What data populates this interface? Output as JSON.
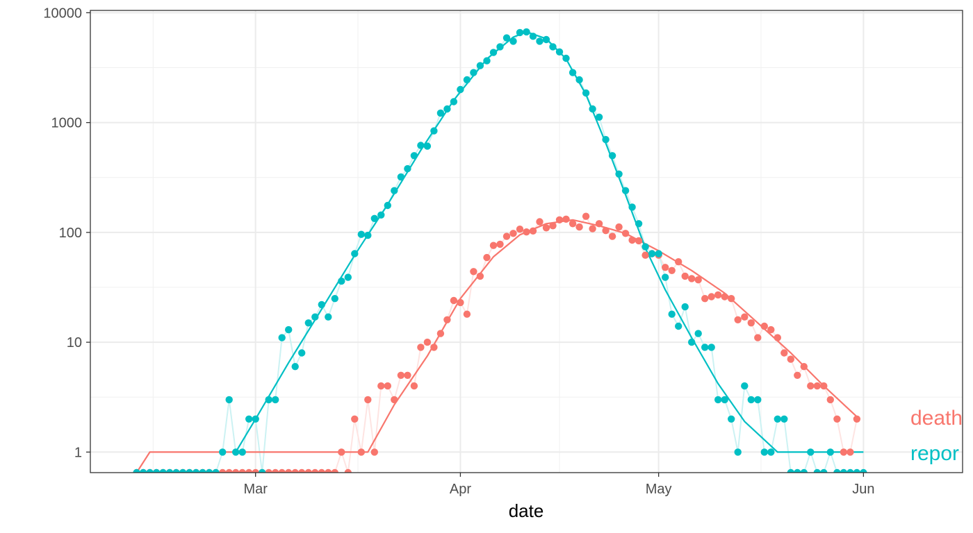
{
  "chart_data": {
    "type": "line",
    "title": "",
    "xlabel": "date",
    "ylabel": "",
    "y_scale": "log10",
    "y_ticks": [
      1,
      10,
      100,
      1000,
      10000
    ],
    "y_tick_labels": [
      "1",
      "10",
      "100",
      "1000",
      "10000"
    ],
    "ylim": [
      0.65,
      10500
    ],
    "xlim": [
      "2020-02-05",
      "2020-06-16"
    ],
    "x_ticks": [
      "2020-03-01",
      "2020-04-01",
      "2020-05-01",
      "2020-06-01"
    ],
    "x_tick_labels": [
      "Mar",
      "Apr",
      "May",
      "Jun"
    ],
    "grid": true,
    "legend": "direct labels at right edge",
    "series": [
      {
        "name": "death",
        "color": "#F8766D",
        "points": [
          [
            "2020-02-12",
            0
          ],
          [
            "2020-02-13",
            0
          ],
          [
            "2020-02-14",
            0
          ],
          [
            "2020-02-15",
            0
          ],
          [
            "2020-02-16",
            0
          ],
          [
            "2020-02-17",
            0
          ],
          [
            "2020-02-18",
            0
          ],
          [
            "2020-02-19",
            0
          ],
          [
            "2020-02-20",
            0
          ],
          [
            "2020-02-21",
            0
          ],
          [
            "2020-02-22",
            0
          ],
          [
            "2020-02-23",
            0
          ],
          [
            "2020-02-24",
            0
          ],
          [
            "2020-02-25",
            0
          ],
          [
            "2020-02-26",
            0
          ],
          [
            "2020-02-27",
            0
          ],
          [
            "2020-02-28",
            0
          ],
          [
            "2020-02-29",
            0
          ],
          [
            "2020-03-01",
            0
          ],
          [
            "2020-03-02",
            0
          ],
          [
            "2020-03-03",
            0
          ],
          [
            "2020-03-04",
            0
          ],
          [
            "2020-03-05",
            0
          ],
          [
            "2020-03-06",
            0
          ],
          [
            "2020-03-07",
            0
          ],
          [
            "2020-03-08",
            0
          ],
          [
            "2020-03-09",
            0
          ],
          [
            "2020-03-10",
            0
          ],
          [
            "2020-03-11",
            0
          ],
          [
            "2020-03-12",
            0
          ],
          [
            "2020-03-13",
            0
          ],
          [
            "2020-03-14",
            1
          ],
          [
            "2020-03-15",
            0
          ],
          [
            "2020-03-16",
            2
          ],
          [
            "2020-03-17",
            1
          ],
          [
            "2020-03-18",
            3
          ],
          [
            "2020-03-19",
            1
          ],
          [
            "2020-03-20",
            4
          ],
          [
            "2020-03-21",
            4
          ],
          [
            "2020-03-22",
            3
          ],
          [
            "2020-03-23",
            5
          ],
          [
            "2020-03-24",
            5
          ],
          [
            "2020-03-25",
            4
          ],
          [
            "2020-03-26",
            9
          ],
          [
            "2020-03-27",
            10
          ],
          [
            "2020-03-28",
            9
          ],
          [
            "2020-03-29",
            12
          ],
          [
            "2020-03-30",
            16
          ],
          [
            "2020-03-31",
            24
          ],
          [
            "2020-04-01",
            23
          ],
          [
            "2020-04-02",
            18
          ],
          [
            "2020-04-03",
            44
          ],
          [
            "2020-04-04",
            40
          ],
          [
            "2020-04-05",
            59
          ],
          [
            "2020-04-06",
            76
          ],
          [
            "2020-04-07",
            78
          ],
          [
            "2020-04-08",
            92
          ],
          [
            "2020-04-09",
            98
          ],
          [
            "2020-04-10",
            107
          ],
          [
            "2020-04-11",
            101
          ],
          [
            "2020-04-12",
            103
          ],
          [
            "2020-04-13",
            125
          ],
          [
            "2020-04-14",
            110
          ],
          [
            "2020-04-15",
            115
          ],
          [
            "2020-04-16",
            130
          ],
          [
            "2020-04-17",
            132
          ],
          [
            "2020-04-18",
            120
          ],
          [
            "2020-04-19",
            112
          ],
          [
            "2020-04-20",
            140
          ],
          [
            "2020-04-21",
            108
          ],
          [
            "2020-04-22",
            120
          ],
          [
            "2020-04-23",
            104
          ],
          [
            "2020-04-24",
            92
          ],
          [
            "2020-04-25",
            112
          ],
          [
            "2020-04-26",
            98
          ],
          [
            "2020-04-27",
            85
          ],
          [
            "2020-04-28",
            84
          ],
          [
            "2020-04-29",
            62
          ],
          [
            "2020-04-30",
            64
          ],
          [
            "2020-05-01",
            62
          ],
          [
            "2020-05-02",
            48
          ],
          [
            "2020-05-03",
            45
          ],
          [
            "2020-05-04",
            54
          ],
          [
            "2020-05-05",
            40
          ],
          [
            "2020-05-06",
            38
          ],
          [
            "2020-05-07",
            37
          ],
          [
            "2020-05-08",
            25
          ],
          [
            "2020-05-09",
            26
          ],
          [
            "2020-05-10",
            27
          ],
          [
            "2020-05-11",
            26
          ],
          [
            "2020-05-12",
            25
          ],
          [
            "2020-05-13",
            16
          ],
          [
            "2020-05-14",
            17
          ],
          [
            "2020-05-15",
            15
          ],
          [
            "2020-05-16",
            11
          ],
          [
            "2020-05-17",
            14
          ],
          [
            "2020-05-18",
            13
          ],
          [
            "2020-05-19",
            11
          ],
          [
            "2020-05-20",
            8
          ],
          [
            "2020-05-21",
            7
          ],
          [
            "2020-05-22",
            5
          ],
          [
            "2020-05-23",
            6
          ],
          [
            "2020-05-24",
            4
          ],
          [
            "2020-05-25",
            4
          ],
          [
            "2020-05-26",
            4
          ],
          [
            "2020-05-27",
            3
          ],
          [
            "2020-05-28",
            2
          ],
          [
            "2020-05-29",
            1
          ],
          [
            "2020-05-30",
            1
          ],
          [
            "2020-05-31",
            2
          ]
        ],
        "trend": [
          [
            "2020-02-12",
            0.65
          ],
          [
            "2020-02-14",
            1
          ],
          [
            "2020-03-18",
            1
          ],
          [
            "2020-03-22",
            2.7
          ],
          [
            "2020-03-27",
            7.5
          ],
          [
            "2020-04-01",
            25
          ],
          [
            "2020-04-06",
            60
          ],
          [
            "2020-04-10",
            95
          ],
          [
            "2020-04-14",
            120
          ],
          [
            "2020-04-18",
            130
          ],
          [
            "2020-04-22",
            115
          ],
          [
            "2020-04-26",
            98
          ],
          [
            "2020-05-01",
            68
          ],
          [
            "2020-05-06",
            45
          ],
          [
            "2020-05-11",
            28
          ],
          [
            "2020-05-16",
            15
          ],
          [
            "2020-05-21",
            8
          ],
          [
            "2020-05-26",
            4
          ],
          [
            "2020-05-31",
            2.1
          ]
        ]
      },
      {
        "name": "reported",
        "label_text": "repor",
        "color": "#00BFC4",
        "points": [
          [
            "2020-02-12",
            0
          ],
          [
            "2020-02-13",
            0
          ],
          [
            "2020-02-14",
            0
          ],
          [
            "2020-02-15",
            0
          ],
          [
            "2020-02-16",
            0
          ],
          [
            "2020-02-17",
            0
          ],
          [
            "2020-02-18",
            0
          ],
          [
            "2020-02-19",
            0
          ],
          [
            "2020-02-20",
            0
          ],
          [
            "2020-02-21",
            0
          ],
          [
            "2020-02-22",
            0
          ],
          [
            "2020-02-23",
            0
          ],
          [
            "2020-02-24",
            0
          ],
          [
            "2020-02-25",
            1
          ],
          [
            "2020-02-26",
            3
          ],
          [
            "2020-02-27",
            1
          ],
          [
            "2020-02-28",
            1
          ],
          [
            "2020-02-29",
            2
          ],
          [
            "2020-03-01",
            2
          ],
          [
            "2020-03-02",
            0
          ],
          [
            "2020-03-03",
            3
          ],
          [
            "2020-03-04",
            3
          ],
          [
            "2020-03-05",
            11
          ],
          [
            "2020-03-06",
            13
          ],
          [
            "2020-03-07",
            6
          ],
          [
            "2020-03-08",
            8
          ],
          [
            "2020-03-09",
            15
          ],
          [
            "2020-03-10",
            17
          ],
          [
            "2020-03-11",
            22
          ],
          [
            "2020-03-12",
            17
          ],
          [
            "2020-03-13",
            25
          ],
          [
            "2020-03-14",
            36
          ],
          [
            "2020-03-15",
            39
          ],
          [
            "2020-03-16",
            64
          ],
          [
            "2020-03-17",
            96
          ],
          [
            "2020-03-18",
            94
          ],
          [
            "2020-03-19",
            134
          ],
          [
            "2020-03-20",
            144
          ],
          [
            "2020-03-21",
            176
          ],
          [
            "2020-03-22",
            240
          ],
          [
            "2020-03-23",
            320
          ],
          [
            "2020-03-24",
            380
          ],
          [
            "2020-03-25",
            500
          ],
          [
            "2020-03-26",
            620
          ],
          [
            "2020-03-27",
            610
          ],
          [
            "2020-03-28",
            840
          ],
          [
            "2020-03-29",
            1220
          ],
          [
            "2020-03-30",
            1330
          ],
          [
            "2020-03-31",
            1550
          ],
          [
            "2020-04-01",
            2000
          ],
          [
            "2020-04-02",
            2450
          ],
          [
            "2020-04-03",
            2850
          ],
          [
            "2020-04-04",
            3300
          ],
          [
            "2020-04-05",
            3650
          ],
          [
            "2020-04-06",
            4350
          ],
          [
            "2020-04-07",
            4900
          ],
          [
            "2020-04-08",
            5900
          ],
          [
            "2020-04-09",
            5500
          ],
          [
            "2020-04-10",
            6600
          ],
          [
            "2020-04-11",
            6700
          ],
          [
            "2020-04-12",
            6100
          ],
          [
            "2020-04-13",
            5500
          ],
          [
            "2020-04-14",
            5700
          ],
          [
            "2020-04-15",
            4900
          ],
          [
            "2020-04-16",
            4400
          ],
          [
            "2020-04-17",
            3850
          ],
          [
            "2020-04-18",
            2850
          ],
          [
            "2020-04-19",
            2450
          ],
          [
            "2020-04-20",
            1860
          ],
          [
            "2020-04-21",
            1330
          ],
          [
            "2020-04-22",
            1120
          ],
          [
            "2020-04-23",
            700
          ],
          [
            "2020-04-24",
            500
          ],
          [
            "2020-04-25",
            340
          ],
          [
            "2020-04-26",
            240
          ],
          [
            "2020-04-27",
            170
          ],
          [
            "2020-04-28",
            120
          ],
          [
            "2020-04-29",
            74
          ],
          [
            "2020-04-30",
            64
          ],
          [
            "2020-05-01",
            64
          ],
          [
            "2020-05-02",
            39
          ],
          [
            "2020-05-03",
            18
          ],
          [
            "2020-05-04",
            14
          ],
          [
            "2020-05-05",
            21
          ],
          [
            "2020-05-06",
            10
          ],
          [
            "2020-05-07",
            12
          ],
          [
            "2020-05-08",
            9
          ],
          [
            "2020-05-09",
            9
          ],
          [
            "2020-05-10",
            3
          ],
          [
            "2020-05-11",
            3
          ],
          [
            "2020-05-12",
            2
          ],
          [
            "2020-05-13",
            1
          ],
          [
            "2020-05-14",
            4
          ],
          [
            "2020-05-15",
            3
          ],
          [
            "2020-05-16",
            3
          ],
          [
            "2020-05-17",
            1
          ],
          [
            "2020-05-18",
            1
          ],
          [
            "2020-05-19",
            2
          ],
          [
            "2020-05-20",
            2
          ],
          [
            "2020-05-21",
            0
          ],
          [
            "2020-05-22",
            0
          ],
          [
            "2020-05-23",
            0
          ],
          [
            "2020-05-24",
            1
          ],
          [
            "2020-05-25",
            0
          ],
          [
            "2020-05-26",
            0
          ],
          [
            "2020-05-27",
            1
          ],
          [
            "2020-05-28",
            0
          ],
          [
            "2020-05-29",
            0
          ],
          [
            "2020-05-30",
            0
          ],
          [
            "2020-05-31",
            0
          ],
          [
            "2020-06-01",
            0
          ]
        ],
        "trend": [
          [
            "2020-02-27",
            1
          ],
          [
            "2020-03-01",
            2
          ],
          [
            "2020-03-06",
            6.5
          ],
          [
            "2020-03-11",
            20
          ],
          [
            "2020-03-16",
            62
          ],
          [
            "2020-03-21",
            180
          ],
          [
            "2020-03-26",
            560
          ],
          [
            "2020-03-31",
            1600
          ],
          [
            "2020-04-05",
            3800
          ],
          [
            "2020-04-09",
            6000
          ],
          [
            "2020-04-11",
            6700
          ],
          [
            "2020-04-14",
            5800
          ],
          [
            "2020-04-17",
            3800
          ],
          [
            "2020-04-20",
            1800
          ],
          [
            "2020-04-23",
            650
          ],
          [
            "2020-04-26",
            220
          ],
          [
            "2020-04-29",
            72
          ],
          [
            "2020-05-02",
            30
          ],
          [
            "2020-05-06",
            11
          ],
          [
            "2020-05-10",
            4.2
          ],
          [
            "2020-05-14",
            1.9
          ],
          [
            "2020-05-19",
            1
          ],
          [
            "2020-06-01",
            1
          ]
        ]
      }
    ]
  }
}
